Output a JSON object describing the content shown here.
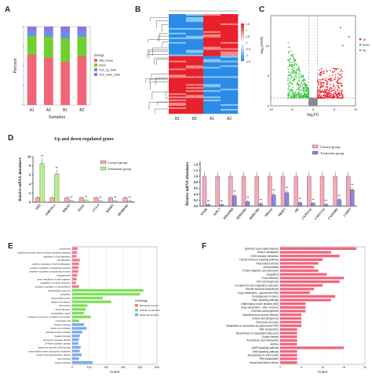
{
  "panels": {
    "a": {
      "letter": "A"
    },
    "b": {
      "letter": "B"
    },
    "c": {
      "letter": "C"
    },
    "d": {
      "letter": "D"
    },
    "e": {
      "letter": "E"
    },
    "f": {
      "letter": "F"
    }
  },
  "colors": {
    "pink": "#f0657a",
    "green": "#6fcf2f",
    "blue": "#6d8fe8",
    "purple": "#9a6fe0",
    "control": "#f7a8b8",
    "treatment_left": "#b8f08c",
    "treatment_right": "#8a86e0",
    "heat_red": "#e8202a",
    "heat_blue": "#2a8be8",
    "heat_white": "#ffffff",
    "volcano_up": "#e8202a",
    "volcano_down": "#35c035",
    "volcano_ns": "#8a8a8a",
    "go_bp": "#f27a8e",
    "go_cc": "#7fe05a",
    "go_mf": "#7ea8f0",
    "kegg": "#f0667f"
  },
  "chart_data": [
    {
      "id": "A",
      "type": "bar",
      "stacked": true,
      "ylabel": "Percent",
      "xlabel": "Samples",
      "categories": [
        "A1",
        "A2",
        "B1",
        "B2"
      ],
      "series": [
        {
          "name": "DMI_Flame",
          "values": [
            0.64,
            0.6,
            0.55,
            0.62
          ]
        },
        {
          "name": "Intron",
          "values": [
            0.24,
            0.27,
            0.3,
            0.25
          ]
        },
        {
          "name": "TSS_up_10kb",
          "values": [
            0.07,
            0.08,
            0.09,
            0.08
          ]
        },
        {
          "name": "TSS_down_10kb",
          "values": [
            0.05,
            0.05,
            0.06,
            0.05
          ]
        }
      ],
      "legend_title": "Group",
      "legend_position": "right"
    },
    {
      "id": "B",
      "type": "heatmap",
      "columns": [
        "B1",
        "B2",
        "A1",
        "A2"
      ],
      "scale_ticks": [
        "1.5",
        "1",
        "0.5",
        "0",
        "-0.5",
        "-1",
        "-1.5"
      ]
    },
    {
      "id": "C",
      "type": "scatter",
      "xlabel": "log₂FC",
      "ylabel": "-log₁₀(FDR)",
      "xlim": [
        -10,
        10
      ],
      "ylim": [
        0,
        15
      ],
      "xticks": [
        "-10",
        "-5",
        "0",
        "5",
        "10"
      ],
      "yticks": [
        "0",
        "5",
        "10"
      ],
      "legend": [
        "Up",
        "Down",
        "No"
      ],
      "legend_position": "top-right"
    },
    {
      "id": "D-left",
      "type": "bar",
      "title": "Up and down regulated genes",
      "ylabel": "Relative mRNA abundance",
      "ylim": [
        0,
        10
      ],
      "yticks": [
        "0",
        "2",
        "4",
        "6",
        "8",
        "10"
      ],
      "categories": [
        "ND1",
        "AMOTL1",
        "MRAS",
        "HAS1",
        "CCL4",
        "KRIP1",
        "HOMER1"
      ],
      "series": [
        {
          "name": "Control group",
          "values": [
            1,
            1,
            1,
            1,
            1,
            1,
            1
          ]
        },
        {
          "name": "Treatment group",
          "values": [
            8.5,
            6.2,
            0.3,
            0.4,
            0.2,
            0.3,
            0.3
          ]
        }
      ],
      "significance": [
        "**",
        "**",
        "**",
        "**",
        "**",
        "**",
        "**"
      ],
      "legend_position": "right"
    },
    {
      "id": "D-right",
      "type": "bar",
      "ylabel": "Relative mRNA abundance",
      "ylim": [
        0,
        1.5
      ],
      "yticks": [
        "0.0",
        "0.2",
        "0.4",
        "0.6",
        "0.8",
        "1.0",
        "1.2",
        "1.4"
      ],
      "categories": [
        "SSAR",
        "IoSL3",
        "PDGFRB",
        "HSD11B2",
        "HSD17B3",
        "NR5A1",
        "NR2F1",
        "AR",
        "CYP11A1",
        "CYP17A1",
        "CYP26B1",
        "COMT"
      ],
      "series": [
        {
          "name": "Control group",
          "values": [
            1,
            1,
            1,
            1,
            1,
            1,
            1,
            1,
            1,
            1,
            1,
            1
          ]
        },
        {
          "name": "Treatment group",
          "values": [
            0.05,
            0.05,
            0.35,
            0.15,
            0.08,
            0.38,
            0.45,
            0.12,
            0.1,
            0.06,
            0.22,
            0.55
          ]
        }
      ],
      "significance": [
        "**",
        "**",
        "**",
        "**",
        "**",
        "**",
        "**",
        "**",
        "**",
        "**",
        "**",
        "**"
      ],
      "legend_position": "top-right"
    },
    {
      "id": "E",
      "type": "bar",
      "orientation": "horizontal",
      "xlabel": "Count",
      "xlim": [
        0,
        500
      ],
      "xticks": [
        "0",
        "100",
        "200",
        "300",
        "400",
        "500"
      ],
      "legend_title": "Ontology",
      "legend": [
        "Biological process",
        "Cellular component",
        "Molecular function"
      ],
      "categories": [
        "proteolysis",
        "epidermal growth factor receptor signaling pathway",
        "regulation of cell adhesion",
        "cell adhesion",
        "positive regulation of cell proliferation",
        "positive regulation of apoptotic process",
        "negative regulation of apoptotic process",
        "angiogenesis",
        "gene regulation of cell migration",
        "regulation of insulin secretion",
        "negative regulation of transcription",
        "extracellular exosome",
        "cytoplasm",
        "extracellular space",
        "plasma membrane",
        "cell surface",
        "focal adhesion",
        "extracellular matrix",
        "integral component of plasma membrane",
        "membrane raft",
        "receptor binding",
        "calcium ion binding",
        "identical protein binding",
        "heparin binding",
        "structural molecule activity",
        "GTPase activator activity",
        "sequence-specific DNA binding",
        "extracellular matrix structural constituent",
        "protein homodimerization activity",
        "actin binding",
        "integrin binding"
      ],
      "groups": [
        "BP",
        "BP",
        "BP",
        "BP",
        "BP",
        "BP",
        "BP",
        "BP",
        "BP",
        "BP",
        "BP",
        "CC",
        "CC",
        "CC",
        "CC",
        "CC",
        "CC",
        "CC",
        "CC",
        "CC",
        "MF",
        "MF",
        "MF",
        "MF",
        "MF",
        "MF",
        "MF",
        "MF",
        "MF",
        "MF",
        "MF"
      ],
      "values": [
        32,
        28,
        25,
        45,
        40,
        38,
        35,
        30,
        26,
        22,
        40,
        420,
        400,
        180,
        230,
        90,
        80,
        70,
        110,
        40,
        70,
        85,
        60,
        45,
        40,
        35,
        50,
        45,
        55,
        40,
        120
      ]
    },
    {
      "id": "F",
      "type": "bar",
      "orientation": "horizontal",
      "xlabel": "Count",
      "xlim": [
        0,
        20
      ],
      "xticks": [
        "0",
        "5",
        "10",
        "15",
        "20"
      ],
      "categories": [
        "Systemic lupus erythematosus",
        "Retinol metabolism",
        "ECM-receptor interaction",
        "Thyroid hormone signaling pathway",
        "Rheumatoid arthritis",
        "Leishmaniasis",
        "Protein digestion and absorption",
        "Hepatitis B",
        "Focal adhesion",
        "Viral carcinogenesis",
        "Complement and coagulation cascades",
        "Steroid hormone biosynthesis",
        "Drug metabolism - cytochrome P450",
        "Proteoglycans in cancer",
        "Rap1 signaling pathway",
        "Inflammatory bowel disease (IBD)",
        "Drug metabolism - other enzymes",
        "Chemical carcinogenesis",
        "Staphylococcus aureus infection",
        "Ovarian steroidogenesis",
        "Pancreatic secretion",
        "Metabolism of xenobiotics by cytochrome P450",
        "ABC transporters",
        "Biosynthesis of unsaturated fatty acids",
        "Oocyte meiosis",
        "Arachidonic acid metabolism",
        "Asthma",
        "cAMP signaling pathway",
        "ErbB signaling pathway",
        "Biosynthesis of amino acids",
        "RNA degradation",
        "Basal transcription factors"
      ],
      "values": [
        18,
        12,
        14,
        10,
        9,
        8,
        9,
        11,
        15,
        14,
        10,
        8,
        7,
        13,
        12,
        6,
        6,
        6,
        5,
        5,
        5,
        5,
        4,
        4,
        4,
        4,
        4,
        15,
        4,
        4,
        4,
        4
      ]
    }
  ]
}
